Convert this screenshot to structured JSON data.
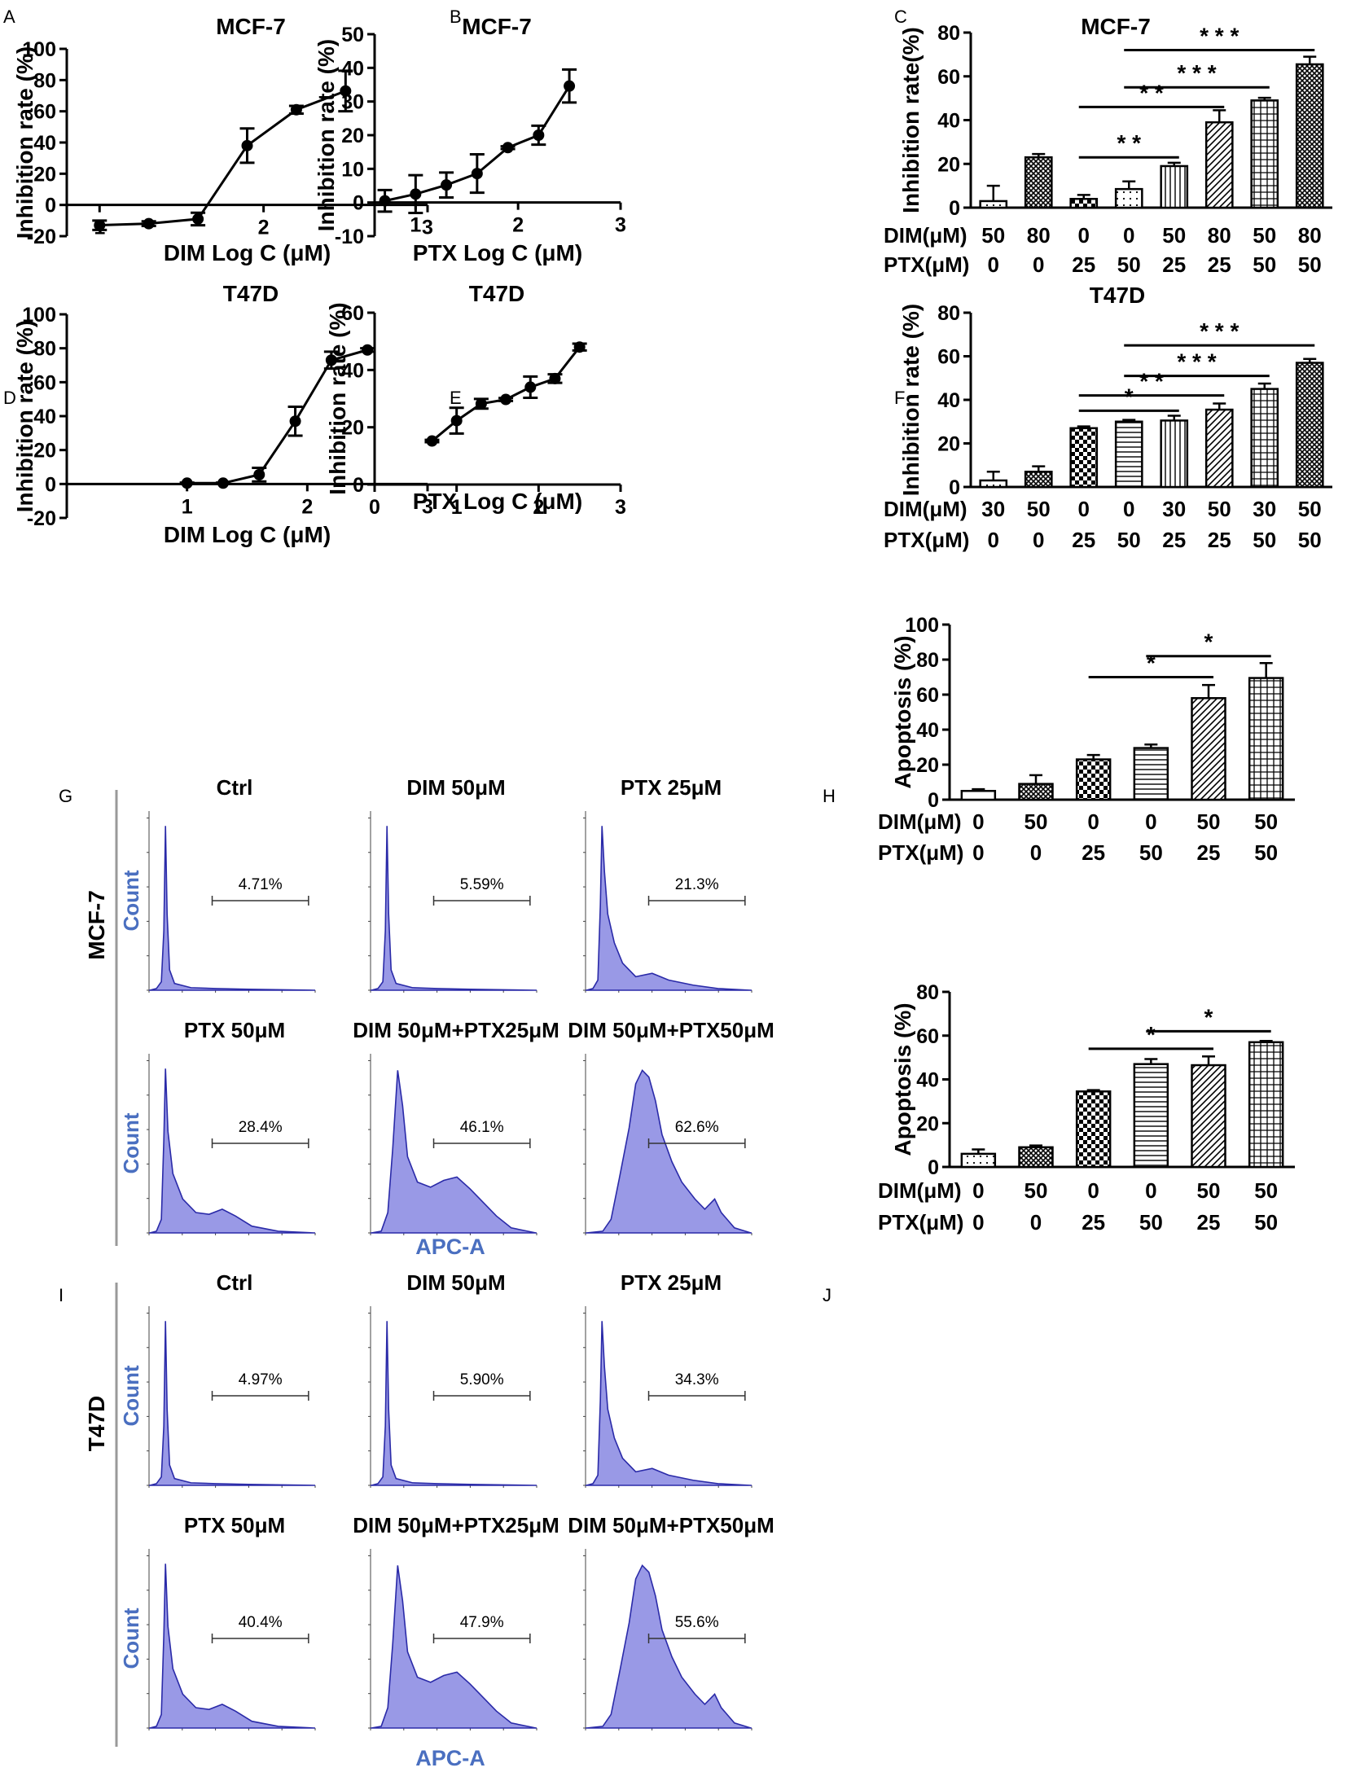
{
  "panel_letters": [
    "A",
    "B",
    "C",
    "D",
    "E",
    "F",
    "G",
    "H",
    "I",
    "J"
  ],
  "colors": {
    "ink": "#000000",
    "flow_fill": "#9999e6",
    "flow_line": "#2a2aa8",
    "flow_label": "#4a6fc0"
  },
  "chart_data": [
    {
      "id": "A",
      "type": "line",
      "title": "MCF-7",
      "xlabel": "DIM Log C (μM)",
      "ylabel": "Inhibition rate (%)",
      "xlim": [
        0.8,
        3
      ],
      "ylim": [
        -20,
        100
      ],
      "xticks": [
        1,
        2,
        3
      ],
      "yticks": [
        -20,
        0,
        20,
        40,
        60,
        80,
        100
      ],
      "x": [
        1,
        1.3,
        1.6,
        1.9,
        2.2,
        2.5
      ],
      "y": [
        -13,
        -12,
        -9,
        38,
        61,
        73
      ],
      "err": [
        3,
        1.5,
        4,
        11,
        2.5,
        13
      ]
    },
    {
      "id": "B",
      "type": "line",
      "title": "MCF-7",
      "xlabel": "PTX Log C (μM)",
      "ylabel": "Inhibition rate (%)",
      "xlim": [
        0.6,
        3
      ],
      "ylim": [
        -10,
        50
      ],
      "xticks": [
        1,
        2,
        3
      ],
      "yticks": [
        -10,
        0,
        10,
        20,
        30,
        40,
        50
      ],
      "x": [
        0.7,
        1,
        1.3,
        1.6,
        1.9,
        2.2,
        2.5
      ],
      "y": [
        0.5,
        2.5,
        5.2,
        8.6,
        16.3,
        20,
        34.6
      ],
      "err": [
        3.2,
        5.6,
        3.7,
        5.7,
        0.4,
        2.8,
        4.9
      ]
    },
    {
      "id": "C",
      "type": "bar",
      "title": "MCF-7",
      "ylabel": "Inhibition rate(%)",
      "ylim": [
        0,
        80
      ],
      "yticks": [
        0,
        20,
        40,
        60,
        80
      ],
      "row_labels": [
        "DIM(μM)",
        "PTX(μM)"
      ],
      "dim": [
        "50",
        "80",
        "0",
        "0",
        "50",
        "80",
        "50",
        "80"
      ],
      "ptx": [
        "0",
        "0",
        "25",
        "50",
        "25",
        "25",
        "50",
        "50"
      ],
      "values": [
        3,
        23,
        4,
        8.5,
        19,
        39,
        49,
        65.5
      ],
      "err": [
        7,
        1.5,
        1.8,
        3.5,
        1.5,
        5.5,
        1.2,
        3.5
      ],
      "patterns": [
        "dots",
        "dense",
        "checker",
        "dots",
        "vlines",
        "diag",
        "grid",
        "dense"
      ],
      "significance": [
        {
          "from": 2,
          "to": 4,
          "y": 23,
          "label": "* *"
        },
        {
          "from": 2,
          "to": 5,
          "y": 46,
          "label": "* *"
        },
        {
          "from": 3,
          "to": 6,
          "y": 55,
          "label": "* * *"
        },
        {
          "from": 3,
          "to": 7,
          "y": 72,
          "label": "* * *"
        }
      ]
    },
    {
      "id": "D",
      "type": "line",
      "title": "T47D",
      "xlabel": "DIM Log C (μM)",
      "ylabel": "Inhibition rate (%)",
      "xlim": [
        0,
        3
      ],
      "ylim": [
        -20,
        100
      ],
      "xticks": [
        1,
        2,
        3
      ],
      "yticks": [
        -20,
        0,
        20,
        40,
        60,
        80,
        100
      ],
      "x": [
        1,
        1.3,
        1.6,
        1.9,
        2.2,
        2.5
      ],
      "y": [
        0.5,
        0.5,
        5.5,
        37,
        73,
        79
      ],
      "err": [
        0.3,
        0.3,
        4,
        8.5,
        5,
        1
      ]
    },
    {
      "id": "E",
      "type": "line",
      "title": "T47D",
      "xlabel": "PTX Log C (μM)",
      "ylabel": "Inhibition rate (%)",
      "xlim": [
        0,
        3
      ],
      "ylim": [
        0,
        60
      ],
      "xticks": [
        0,
        1,
        2,
        3
      ],
      "yticks": [
        0,
        20,
        40,
        60
      ],
      "x": [
        0.7,
        1,
        1.3,
        1.6,
        1.9,
        2.2,
        2.5
      ],
      "y": [
        15.2,
        22.3,
        28.2,
        29.7,
        34,
        37,
        48
      ],
      "err": [
        0.4,
        4.5,
        1.7,
        0.5,
        3.7,
        1.5,
        1.2
      ]
    },
    {
      "id": "F",
      "type": "bar",
      "title": "T47D",
      "ylabel": "Inhibition rate (%)",
      "ylim": [
        0,
        80
      ],
      "yticks": [
        0,
        20,
        40,
        60,
        80
      ],
      "row_labels": [
        "DIM(μM)",
        "PTX(μM)"
      ],
      "dim": [
        "30",
        "50",
        "0",
        "0",
        "30",
        "50",
        "30",
        "50"
      ],
      "ptx": [
        "0",
        "0",
        "25",
        "50",
        "25",
        "25",
        "50",
        "50"
      ],
      "values": [
        3,
        7,
        27,
        30,
        30.5,
        35.5,
        45,
        57
      ],
      "err": [
        4,
        2.5,
        0.8,
        0.8,
        2.2,
        2.8,
        2.5,
        1.8
      ],
      "patterns": [
        "dots",
        "dense",
        "checker",
        "hlines",
        "vlines",
        "diag",
        "grid",
        "dense"
      ],
      "significance": [
        {
          "from": 2,
          "to": 4,
          "y": 35,
          "label": "*"
        },
        {
          "from": 2,
          "to": 5,
          "y": 42,
          "label": "* *"
        },
        {
          "from": 3,
          "to": 6,
          "y": 51,
          "label": "* * *"
        },
        {
          "from": 3,
          "to": 7,
          "y": 65,
          "label": "* * *"
        }
      ]
    },
    {
      "id": "H",
      "type": "bar",
      "title": "",
      "ylabel": "Apoptosis (%)",
      "ylim": [
        0,
        100
      ],
      "yticks": [
        0,
        20,
        40,
        60,
        80,
        100
      ],
      "row_labels": [
        "DIM(μM)",
        "PTX(μM)"
      ],
      "dim": [
        "0",
        "50",
        "0",
        "0",
        "50",
        "50"
      ],
      "ptx": [
        "0",
        "0",
        "25",
        "50",
        "25",
        "50"
      ],
      "values": [
        5,
        9,
        23,
        29.5,
        58,
        69.5
      ],
      "err": [
        1,
        5,
        2.5,
        2,
        7.5,
        8.5
      ],
      "patterns": [
        "none",
        "dense",
        "checker",
        "hlines",
        "diag",
        "grid"
      ],
      "significance": [
        {
          "from": 2,
          "to": 4,
          "y": 70,
          "label": "*"
        },
        {
          "from": 3,
          "to": 5,
          "y": 82,
          "label": "*"
        }
      ]
    },
    {
      "id": "J",
      "type": "bar",
      "title": "",
      "ylabel": "Apoptosis (%)",
      "ylim": [
        0,
        80
      ],
      "yticks": [
        0,
        20,
        40,
        60,
        80
      ],
      "row_labels": [
        "DIM(μM)",
        "PTX(μM)"
      ],
      "dim": [
        "0",
        "50",
        "0",
        "0",
        "50",
        "50"
      ],
      "ptx": [
        "0",
        "0",
        "25",
        "50",
        "25",
        "50"
      ],
      "values": [
        6,
        9,
        34.5,
        47,
        46.5,
        57
      ],
      "err": [
        2,
        0.8,
        0.6,
        2.3,
        4,
        0.6
      ],
      "patterns": [
        "dots",
        "dense",
        "checker",
        "hlines",
        "diag",
        "grid"
      ],
      "significance": [
        {
          "from": 2,
          "to": 4,
          "y": 54,
          "label": "*"
        },
        {
          "from": 3,
          "to": 5,
          "y": 62,
          "label": "*"
        }
      ]
    }
  ],
  "flow": {
    "G": {
      "row_label": "MCF-7",
      "y_label": "Count",
      "x_label": "APC-A",
      "plots": [
        {
          "title": "Ctrl",
          "percent": "4.71%",
          "shape": "sharp"
        },
        {
          "title": "DIM 50μM",
          "percent": "5.59%",
          "shape": "sharp"
        },
        {
          "title": "PTX 25μM",
          "percent": "21.3%",
          "shape": "tail"
        },
        {
          "title": "PTX 50μM",
          "percent": "28.4%",
          "shape": "tail2"
        },
        {
          "title": "DIM 50μM+PTX25μM",
          "percent": "46.1%",
          "shape": "wide"
        },
        {
          "title": "DIM 50μM+PTX50μM",
          "percent": "62.6%",
          "shape": "broad"
        }
      ]
    },
    "I": {
      "row_label": "T47D",
      "y_label": "Count",
      "x_label": "APC-A",
      "plots": [
        {
          "title": "Ctrl",
          "percent": "4.97%",
          "shape": "sharp"
        },
        {
          "title": "DIM 50μM",
          "percent": "5.90%",
          "shape": "sharp"
        },
        {
          "title": "PTX 25μM",
          "percent": "34.3%",
          "shape": "tail"
        },
        {
          "title": "PTX 50μM",
          "percent": "40.4%",
          "shape": "tail2"
        },
        {
          "title": "DIM 50μM+PTX25μM",
          "percent": "47.9%",
          "shape": "wide"
        },
        {
          "title": "DIM 50μM+PTX50μM",
          "percent": "55.6%",
          "shape": "broad"
        }
      ]
    }
  }
}
